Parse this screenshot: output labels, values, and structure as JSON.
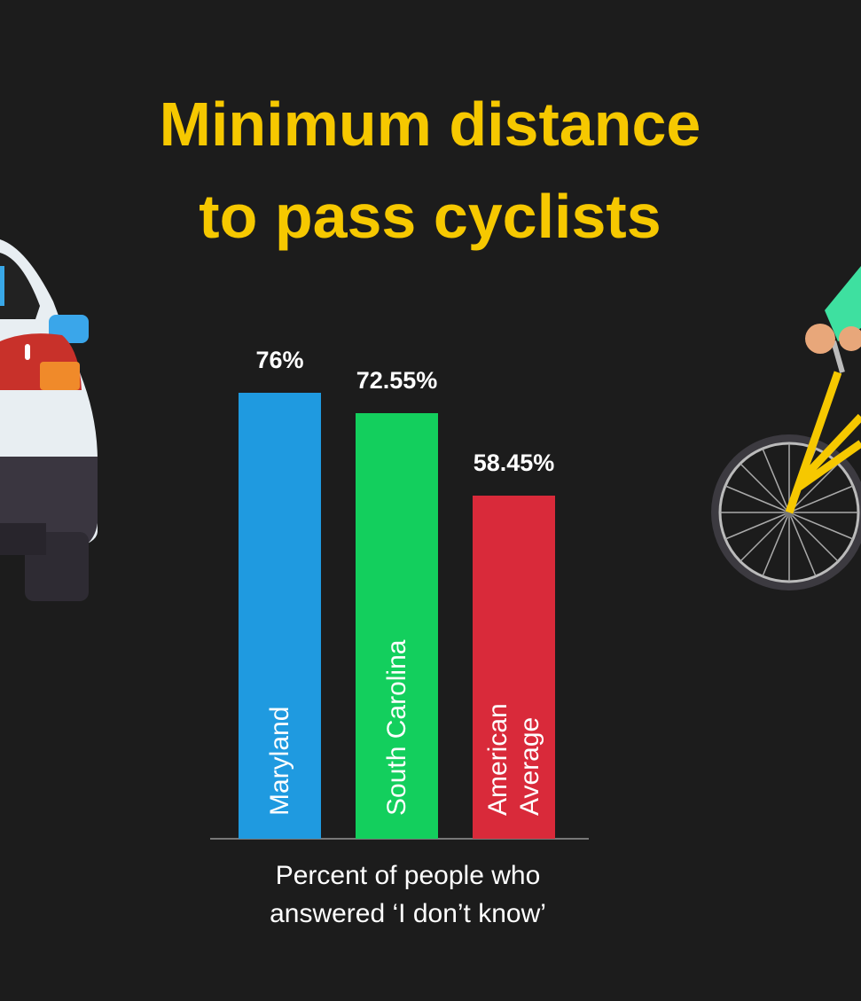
{
  "chart_data": {
    "type": "bar",
    "title": "Minimum distance to pass cyclists",
    "categories": [
      "Maryland",
      "South Carolina",
      "American Average"
    ],
    "values": [
      76,
      72.55,
      58.45
    ],
    "value_labels": [
      "76%",
      "72.55%",
      "58.45%"
    ],
    "colors": [
      "#1f9ae0",
      "#13cf5d",
      "#d92a3a"
    ],
    "x_label": "Percent of people who answered ‘I don’t know’"
  }
}
